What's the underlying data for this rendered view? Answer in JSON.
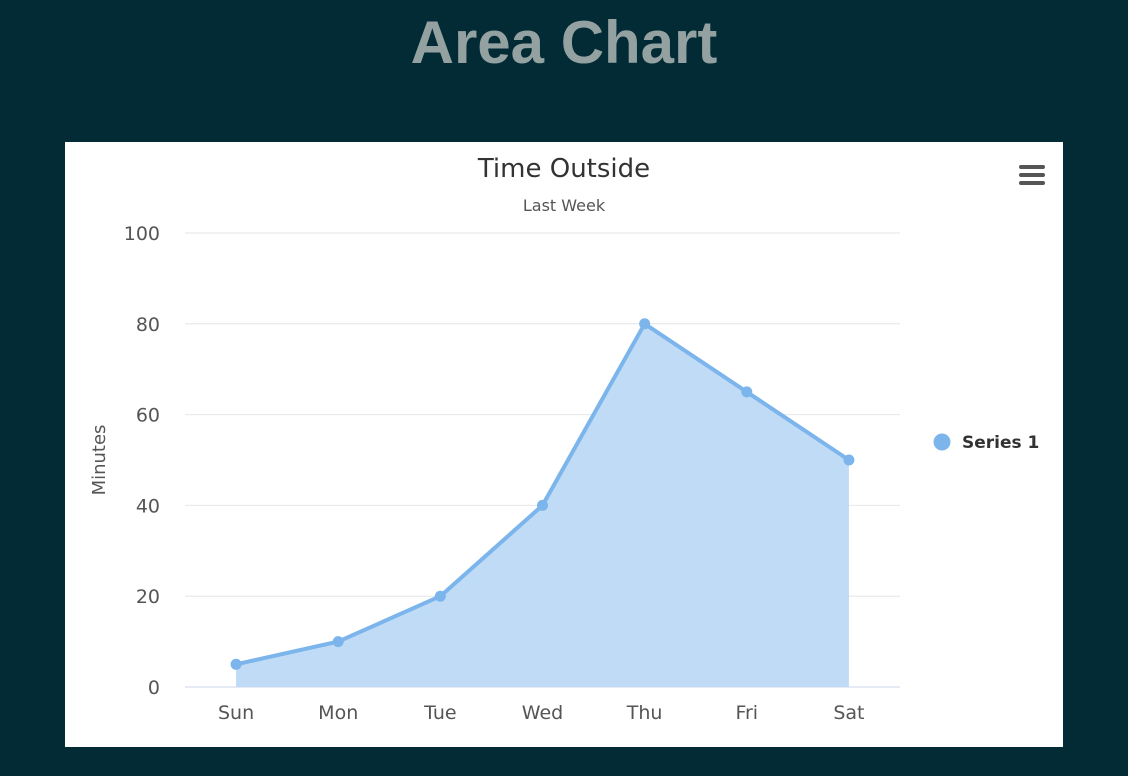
{
  "page": {
    "heading": "Area Chart"
  },
  "chart_menu": {
    "icon": "hamburger-menu-icon"
  },
  "colors": {
    "page_background": "#022b36",
    "heading": "#93a1a1",
    "series_line": "#7cb5ec",
    "series_fill": "#c0dbf5",
    "grid": "#e6e6e6",
    "text": "#555555",
    "title": "#333333"
  },
  "chart_data": {
    "type": "area",
    "title": "Time Outside",
    "subtitle": "Last Week",
    "xlabel": "",
    "ylabel": "Minutes",
    "categories": [
      "Sun",
      "Mon",
      "Tue",
      "Wed",
      "Thu",
      "Fri",
      "Sat"
    ],
    "series": [
      {
        "name": "Series 1",
        "values": [
          5,
          10,
          20,
          40,
          80,
          65,
          50
        ]
      }
    ],
    "ylim": [
      0,
      100
    ],
    "yticks": [
      0,
      20,
      40,
      60,
      80,
      100
    ],
    "grid": true,
    "legend": "right",
    "markers": true
  }
}
